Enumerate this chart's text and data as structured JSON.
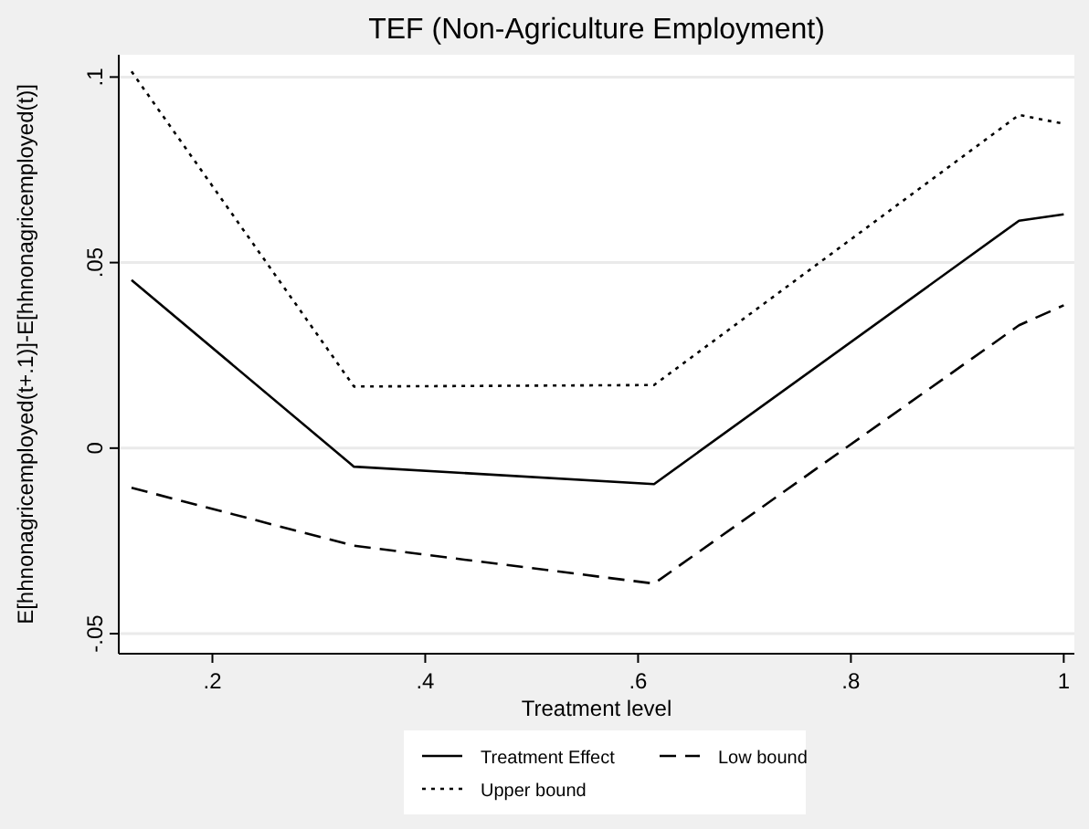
{
  "chart_data": {
    "type": "line",
    "title": "TEF (Non-Agriculture Employment)",
    "xlabel": "Treatment level",
    "ylabel": "E[hhnonagricemployed(t+.1)]-E[hhnonagricemployed(t)]",
    "x": [
      0.124,
      0.333,
      0.615,
      0.958,
      1.0
    ],
    "series": [
      {
        "name": "Treatment Effect",
        "color": "#000000",
        "line_style": "solid",
        "values": [
          0.0453,
          -0.005,
          -0.0097,
          0.0613,
          0.063
        ]
      },
      {
        "name": "Low bound",
        "color": "#000000",
        "line_style": "dashed",
        "values": [
          -0.0107,
          -0.0263,
          -0.0365,
          0.0331,
          0.0385
        ]
      },
      {
        "name": "Upper bound",
        "color": "#000000",
        "line_style": "dotted",
        "values": [
          0.1015,
          0.0166,
          0.017,
          0.0898,
          0.0874
        ]
      }
    ],
    "xlim": [
      0.112,
      1.01
    ],
    "xticks": [
      {
        "value": 0.2,
        "label": ".2"
      },
      {
        "value": 0.4,
        "label": ".4"
      },
      {
        "value": 0.6,
        "label": ".6"
      },
      {
        "value": 0.8,
        "label": ".8"
      },
      {
        "value": 1,
        "label": "1"
      }
    ],
    "ylim": [
      -0.0554,
      0.106
    ],
    "yticks": [
      {
        "value": -0.05,
        "label": "-.05"
      },
      {
        "value": 0,
        "label": "0"
      },
      {
        "value": 0.05,
        "label": ".05"
      },
      {
        "value": 0.1,
        "label": ".1"
      }
    ],
    "grid": "y",
    "legend": "bottom",
    "marker": "none"
  }
}
